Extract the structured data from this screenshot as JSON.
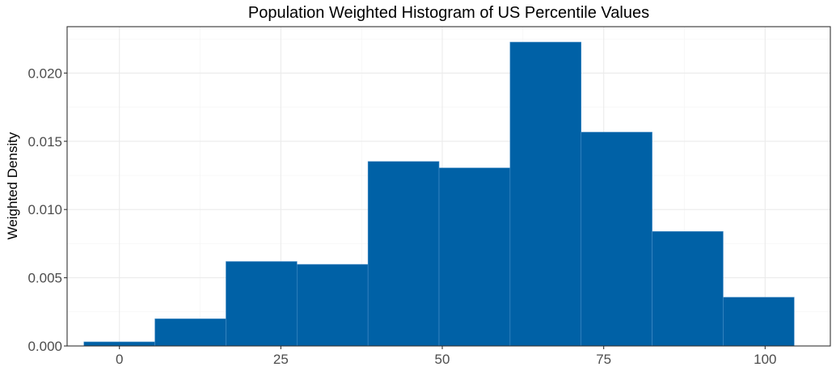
{
  "chart_data": {
    "type": "bar",
    "title": "Population Weighted Histogram of US Percentile Values",
    "xlabel": "",
    "ylabel": "Weighted Density",
    "xlim": [
      -8.1,
      110.1
    ],
    "ylim": [
      0,
      0.0234
    ],
    "x_ticks": [
      0,
      25,
      50,
      75,
      100
    ],
    "x_tick_labels": [
      "0",
      "25",
      "50",
      "75",
      "100"
    ],
    "y_ticks": [
      0,
      0.005,
      0.01,
      0.015,
      0.02
    ],
    "y_tick_labels": [
      "0.000",
      "0.005",
      "0.010",
      "0.015",
      "0.020"
    ],
    "bins": [
      {
        "x0": -5.5,
        "x1": 5.5,
        "value": 0.0003
      },
      {
        "x0": 5.5,
        "x1": 16.5,
        "value": 0.00199
      },
      {
        "x0": 16.5,
        "x1": 27.5,
        "value": 0.00619
      },
      {
        "x0": 27.5,
        "x1": 38.5,
        "value": 0.00598
      },
      {
        "x0": 38.5,
        "x1": 49.5,
        "value": 0.01352
      },
      {
        "x0": 49.5,
        "x1": 60.5,
        "value": 0.01305
      },
      {
        "x0": 60.5,
        "x1": 71.5,
        "value": 0.02227
      },
      {
        "x0": 71.5,
        "x1": 82.5,
        "value": 0.01567
      },
      {
        "x0": 82.5,
        "x1": 93.5,
        "value": 0.00839
      },
      {
        "x0": 93.5,
        "x1": 104.5,
        "value": 0.00357
      }
    ],
    "bar_color": "#0061a6",
    "grid": true,
    "legend": "none"
  }
}
